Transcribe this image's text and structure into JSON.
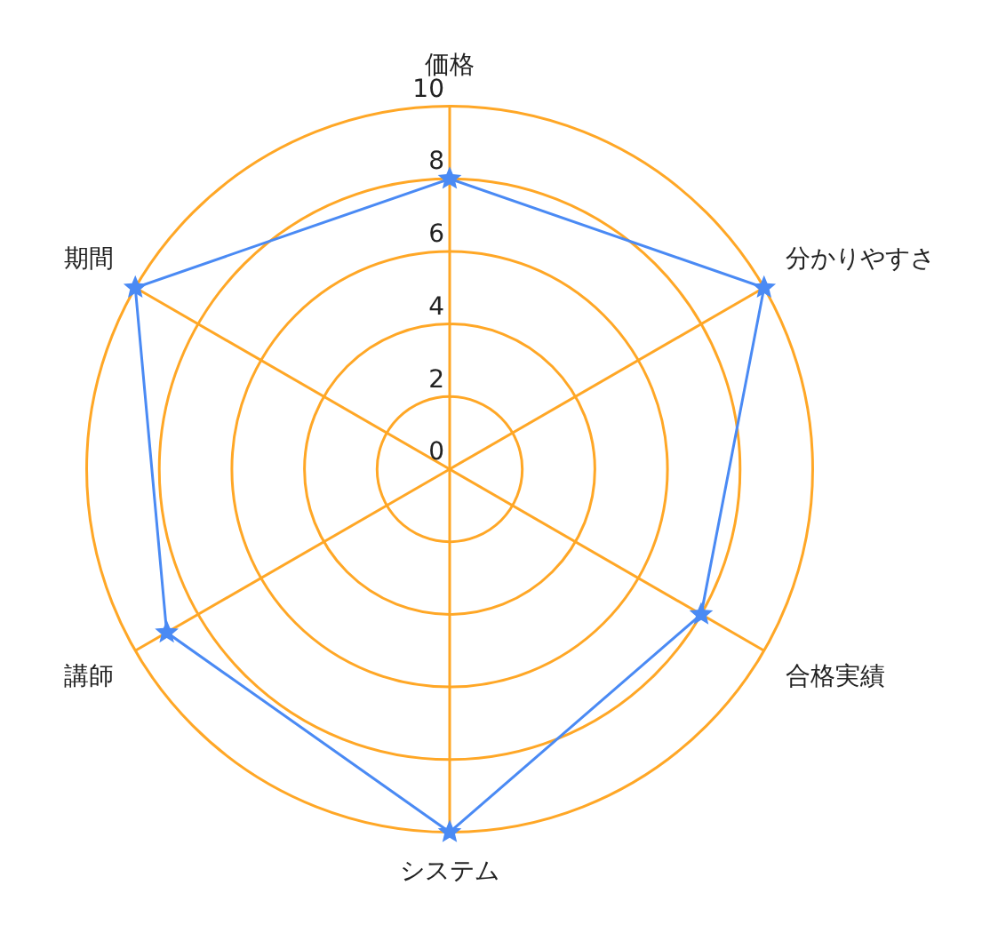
{
  "chart_data": {
    "type": "radar",
    "categories": [
      "価格",
      "分かりやすさ",
      "合格実績",
      "システム",
      "講師",
      "期間"
    ],
    "series": [
      {
        "color": "#4a8af4",
        "values": [
          8,
          10,
          8,
          10,
          9,
          10
        ]
      }
    ],
    "ylim": [
      0,
      10
    ],
    "yticks": [
      0,
      2,
      4,
      6,
      8,
      10
    ],
    "grid": true,
    "marker": "star",
    "legend": false
  }
}
